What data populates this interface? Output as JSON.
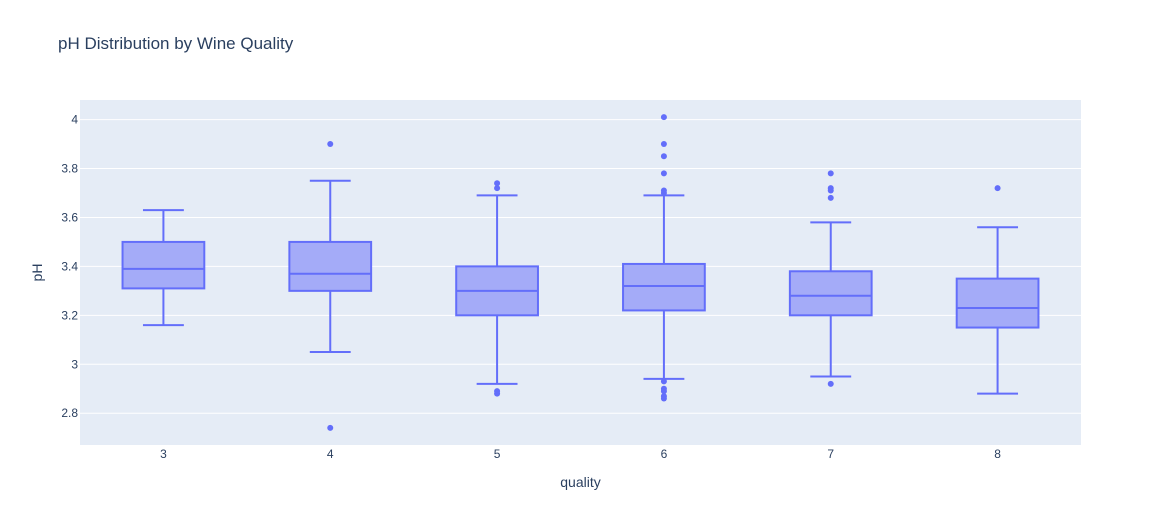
{
  "chart_data": {
    "type": "box",
    "title": "pH Distribution by Wine Quality",
    "xlabel": "quality",
    "ylabel": "pH",
    "ylim": [
      2.67,
      4.08
    ],
    "yticks": [
      2.8,
      3,
      3.2,
      3.4,
      3.6,
      3.8,
      4
    ],
    "ytick_labels": [
      "2.8",
      "3",
      "3.2",
      "3.4",
      "3.6",
      "3.8",
      "4"
    ],
    "grid": true,
    "colors": {
      "box_line": "#636efa",
      "box_fill": "#a4abf8",
      "plot_bg": "#e5ecf6",
      "grid": "#ffffff",
      "text": "#2a3f5f"
    },
    "categories": [
      "3",
      "4",
      "5",
      "6",
      "7",
      "8"
    ],
    "boxes": [
      {
        "category": "3",
        "lower_fence": 3.16,
        "q1": 3.31,
        "median": 3.39,
        "q3": 3.5,
        "upper_fence": 3.63,
        "outliers": []
      },
      {
        "category": "4",
        "lower_fence": 3.05,
        "q1": 3.3,
        "median": 3.37,
        "q3": 3.5,
        "upper_fence": 3.75,
        "outliers": [
          3.9,
          2.74
        ]
      },
      {
        "category": "5",
        "lower_fence": 2.92,
        "q1": 3.2,
        "median": 3.3,
        "q3": 3.4,
        "upper_fence": 3.69,
        "outliers": [
          3.74,
          3.72,
          2.89,
          2.88
        ]
      },
      {
        "category": "6",
        "lower_fence": 2.94,
        "q1": 3.22,
        "median": 3.32,
        "q3": 3.41,
        "upper_fence": 3.69,
        "outliers": [
          4.01,
          3.9,
          3.85,
          3.78,
          3.71,
          3.7,
          2.93,
          2.9,
          2.89,
          2.87,
          2.86
        ]
      },
      {
        "category": "7",
        "lower_fence": 2.95,
        "q1": 3.2,
        "median": 3.28,
        "q3": 3.38,
        "upper_fence": 3.58,
        "outliers": [
          3.78,
          3.71,
          3.72,
          3.68,
          2.92
        ]
      },
      {
        "category": "8",
        "lower_fence": 2.88,
        "q1": 3.15,
        "median": 3.23,
        "q3": 3.35,
        "upper_fence": 3.56,
        "outliers": [
          3.72
        ]
      }
    ]
  }
}
